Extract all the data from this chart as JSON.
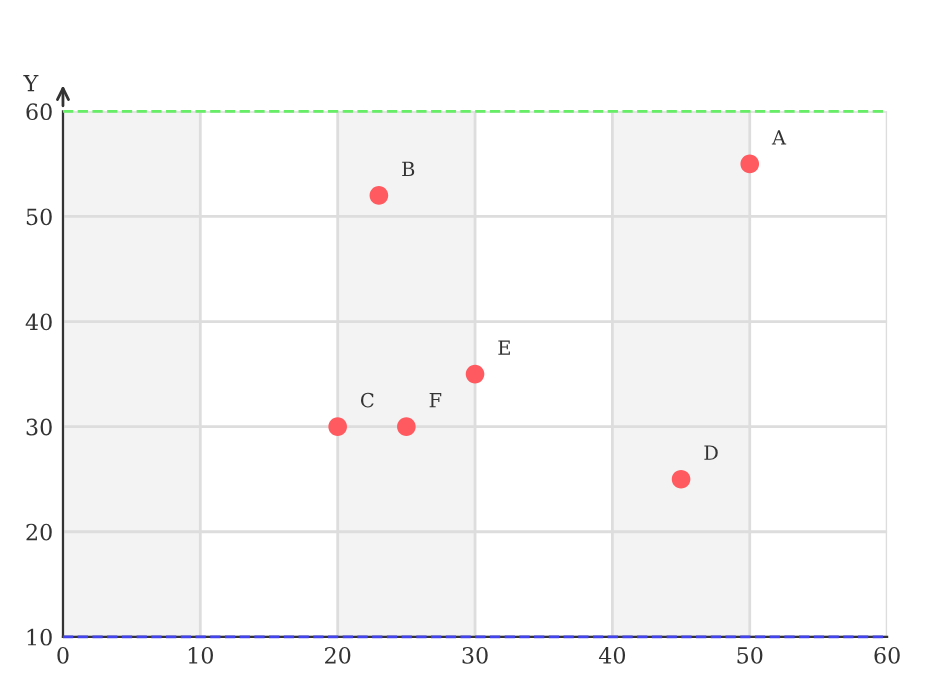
{
  "chart_data": {
    "type": "scatter",
    "ylabel": "Y",
    "x": [
      50,
      23,
      20,
      45,
      30,
      25
    ],
    "series": [
      {
        "color": "#ff5a5f",
        "values": [
          55,
          52,
          30,
          25,
          35,
          30
        ]
      }
    ],
    "annotations": [
      {
        "text": "A",
        "x": 50,
        "y": 55
      },
      {
        "text": "B",
        "x": 23,
        "y": 52
      },
      {
        "text": "C",
        "x": 20,
        "y": 30
      },
      {
        "text": "D",
        "x": 45,
        "y": 25
      },
      {
        "text": "E",
        "x": 30,
        "y": 35
      },
      {
        "text": "F",
        "x": 25,
        "y": 30
      }
    ],
    "xlim": [
      0,
      60
    ],
    "xticks": [
      0,
      10,
      20,
      30,
      40,
      50,
      60
    ],
    "ylim": [
      10,
      60
    ],
    "yticks": [
      10,
      20,
      30,
      40,
      50,
      60
    ],
    "bands": [
      {
        "axis": "x",
        "from": 0,
        "to": 10,
        "color": "#f3f3f3"
      },
      {
        "axis": "x",
        "from": 20,
        "to": 30,
        "color": "#f3f3f3"
      },
      {
        "axis": "x",
        "from": 40,
        "to": 50,
        "color": "#f3f3f3"
      }
    ],
    "ref_lines": [
      {
        "axis": "y",
        "value": 60,
        "color": "#66ee66",
        "line_style": "dashed"
      },
      {
        "axis": "y",
        "value": 10,
        "color": "#4444ee",
        "line_style": "dashed"
      }
    ],
    "grid": true,
    "marker": "circle"
  }
}
